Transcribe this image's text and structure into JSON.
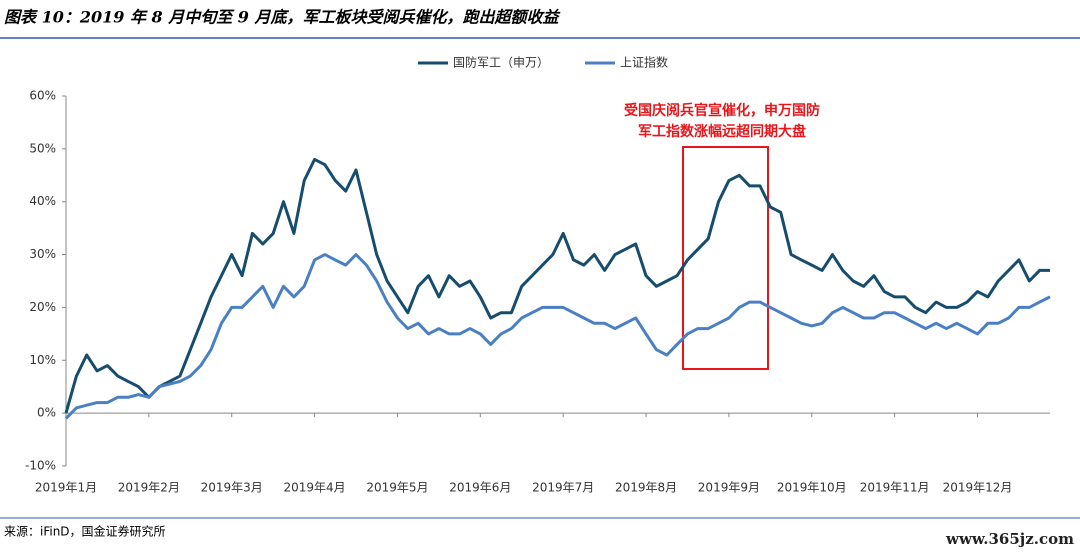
{
  "chart_data": {
    "type": "line",
    "title": "图表 10：2019 年 8 月中旬至 9 月底，军工板块受阅兵催化，跑出超额收益",
    "source": "来源：iFinD，国金证券研究所",
    "watermark": "www.365jz.com",
    "annotation": [
      "受国庆阅兵官宣催化，申万国防",
      "军工指数涨幅远超同期大盘"
    ],
    "categories": [
      "2019年1月",
      null,
      null,
      null,
      null,
      null,
      null,
      null,
      "2019年2月",
      null,
      null,
      null,
      null,
      null,
      null,
      null,
      "2019年3月",
      null,
      null,
      null,
      null,
      null,
      null,
      null,
      "2019年4月",
      null,
      null,
      null,
      null,
      null,
      null,
      null,
      "2019年5月",
      null,
      null,
      null,
      null,
      null,
      null,
      null,
      "2019年6月",
      null,
      null,
      null,
      null,
      null,
      null,
      null,
      "2019年7月",
      null,
      null,
      null,
      null,
      null,
      null,
      null,
      "2019年8月",
      null,
      null,
      null,
      null,
      null,
      null,
      null,
      "2019年9月",
      null,
      null,
      null,
      null,
      null,
      null,
      null,
      "2019年10月",
      null,
      null,
      null,
      null,
      null,
      null,
      null,
      "2019年11月",
      null,
      null,
      null,
      null,
      null,
      null,
      null,
      "2019年12月",
      null,
      null,
      null,
      null,
      null,
      null,
      null
    ],
    "series": [
      {
        "name": "国防军工（申万）",
        "color": "#164d6e",
        "values": [
          0,
          7,
          11,
          8,
          9,
          7,
          6,
          5,
          3,
          5,
          6,
          7,
          12,
          17,
          22,
          26,
          30,
          26,
          34,
          32,
          34,
          40,
          34,
          44,
          48,
          47,
          44,
          42,
          46,
          38,
          30,
          25,
          22,
          19,
          24,
          26,
          22,
          26,
          24,
          25,
          22,
          18,
          19,
          19,
          24,
          26,
          28,
          30,
          34,
          29,
          28,
          30,
          27,
          30,
          31,
          32,
          26,
          24,
          25,
          26,
          29,
          31,
          33,
          40,
          44,
          45,
          43,
          43,
          39,
          38,
          30,
          29,
          28,
          27,
          30,
          27,
          25,
          24,
          26,
          23,
          22,
          22,
          20,
          19,
          21,
          20,
          20,
          21,
          23,
          22,
          25,
          27,
          29,
          25,
          27,
          27
        ]
      },
      {
        "name": "上证指数",
        "color": "#4a80c3",
        "values": [
          -1,
          1,
          1.5,
          2,
          2,
          3,
          3,
          3.5,
          3,
          5,
          5.5,
          6,
          7,
          9,
          12,
          17,
          20,
          20,
          22,
          24,
          20,
          24,
          22,
          24,
          29,
          30,
          29,
          28,
          30,
          28,
          25,
          21,
          18,
          16,
          17,
          15,
          16,
          15,
          15,
          16,
          15,
          13,
          15,
          16,
          18,
          19,
          20,
          20,
          20,
          19,
          18,
          17,
          17,
          16,
          17,
          18,
          15,
          12,
          11,
          13,
          15,
          16,
          16,
          17,
          18,
          20,
          21,
          21,
          20,
          19,
          18,
          17,
          16.5,
          17,
          19,
          20,
          19,
          18,
          18,
          19,
          19,
          18,
          17,
          16,
          17,
          16,
          17,
          16,
          15,
          17,
          17,
          18,
          20,
          20,
          21,
          22
        ]
      }
    ],
    "ylim": [
      -10,
      60
    ],
    "yticks": [
      {
        "value": -10,
        "label": "-10%"
      },
      {
        "value": 0,
        "label": "0%"
      },
      {
        "value": 10,
        "label": "10%"
      },
      {
        "value": 20,
        "label": "20%"
      },
      {
        "value": 30,
        "label": "30%"
      },
      {
        "value": 40,
        "label": "40%"
      },
      {
        "value": 50,
        "label": "50%"
      },
      {
        "value": 60,
        "label": "60%"
      }
    ]
  }
}
